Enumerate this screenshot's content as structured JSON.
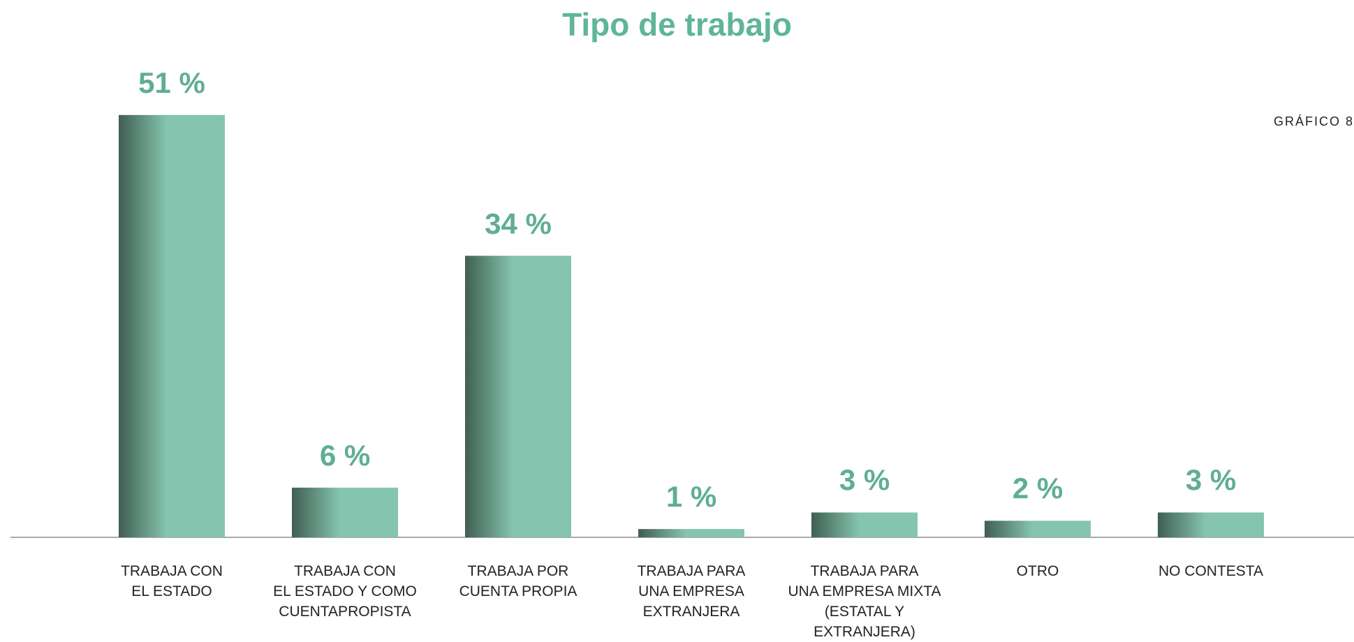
{
  "chart_data": {
    "type": "bar",
    "title": "Tipo de trabajo",
    "figure_label": "GRÁFICO 8",
    "categories": [
      "TRABAJA CON\nEL ESTADO",
      "TRABAJA CON\nEL ESTADO Y COMO\nCUENTAPROPISTA",
      "TRABAJA POR\nCUENTA PROPIA",
      "TRABAJA PARA\nUNA EMPRESA\nEXTRANJERA",
      "TRABAJA PARA\nUNA EMPRESA MIXTA\n(ESTATAL Y EXTRANJERA)",
      "OTRO",
      "NO CONTESTA"
    ],
    "values": [
      51,
      6,
      34,
      1,
      3,
      2,
      3
    ],
    "value_labels": [
      "51 %",
      "6 %",
      "34 %",
      "1 %",
      "3 %",
      "2 %",
      "3 %"
    ],
    "colors": [
      "#3f5f52",
      "#85c4ae"
    ],
    "ylim": [
      0,
      60
    ]
  }
}
